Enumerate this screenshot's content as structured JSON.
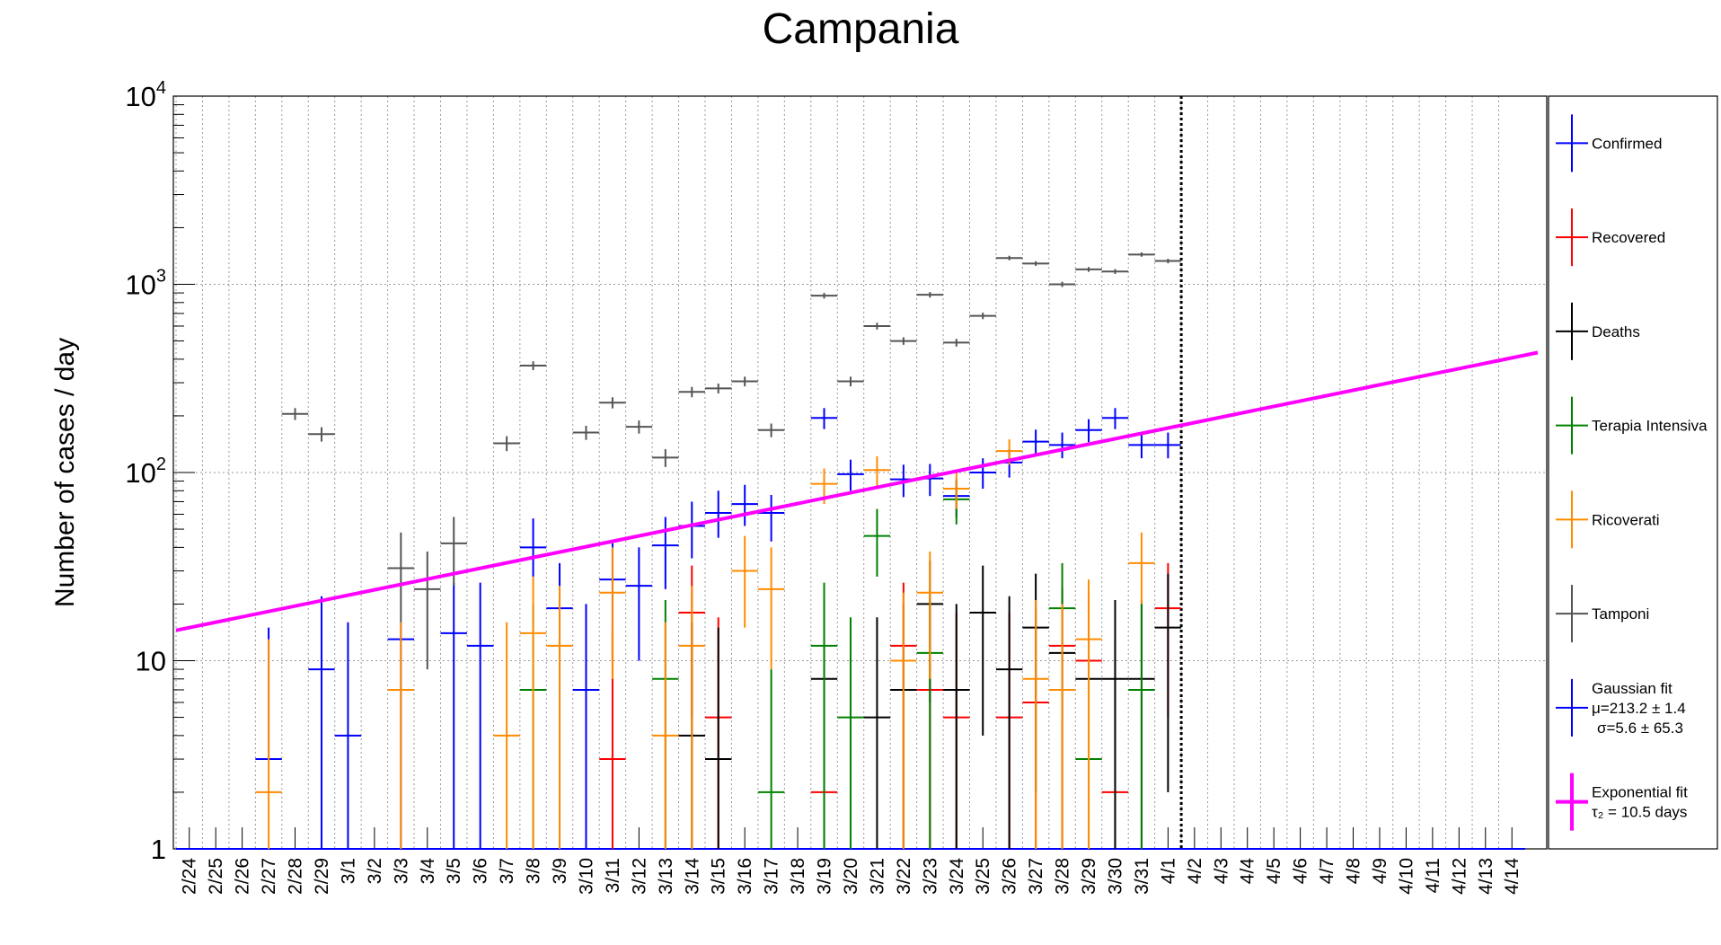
{
  "chart_data": {
    "type": "scatter",
    "title": "Campania",
    "ylabel": "Number of cases / day",
    "xlabel": "",
    "yscale": "log",
    "ylim": [
      1,
      10000
    ],
    "grid": true,
    "legend_position": "right",
    "y_ticks": [
      {
        "v": 1,
        "m": "1",
        "e": ""
      },
      {
        "v": 10,
        "m": "10",
        "e": ""
      },
      {
        "v": 100,
        "m": "10",
        "e": "2"
      },
      {
        "v": 1000,
        "m": "10",
        "e": "3"
      },
      {
        "v": 10000,
        "m": "10",
        "e": "4"
      }
    ],
    "categories": [
      "2/24",
      "2/25",
      "2/26",
      "2/27",
      "2/28",
      "2/29",
      "3/1",
      "3/2",
      "3/3",
      "3/4",
      "3/5",
      "3/6",
      "3/7",
      "3/8",
      "3/9",
      "3/10",
      "3/11",
      "3/12",
      "3/13",
      "3/14",
      "3/15",
      "3/16",
      "3/17",
      "3/18",
      "3/19",
      "3/20",
      "3/21",
      "3/22",
      "3/23",
      "3/24",
      "3/25",
      "3/26",
      "3/27",
      "3/28",
      "3/29",
      "3/30",
      "3/31",
      "4/1",
      "4/2",
      "4/3",
      "4/4",
      "4/5",
      "4/6",
      "4/7",
      "4/8",
      "4/9",
      "4/10",
      "4/11",
      "4/12",
      "4/13",
      "4/14"
    ],
    "last_data_date": "4/1",
    "series": [
      {
        "name": "Confirmed",
        "color": "#0000ff",
        "points": [
          {
            "x": "2/27",
            "y": 3,
            "yerr": [
              3,
              15
            ]
          },
          {
            "x": "2/29",
            "y": 9,
            "yerr": [
              1,
              22
            ]
          },
          {
            "x": "3/1",
            "y": 4,
            "yerr": [
              1,
              16
            ]
          },
          {
            "x": "3/3",
            "y": 13,
            "yerr": [
              1,
              16
            ]
          },
          {
            "x": "3/5",
            "y": 14,
            "yerr": [
              1,
              26
            ]
          },
          {
            "x": "3/6",
            "y": 12,
            "yerr": [
              1,
              26
            ]
          },
          {
            "x": "3/8",
            "y": 40,
            "yerr": [
              28,
              57
            ]
          },
          {
            "x": "3/9",
            "y": 19,
            "yerr": [
              1,
              33
            ]
          },
          {
            "x": "3/10",
            "y": 7,
            "yerr": [
              1,
              20
            ]
          },
          {
            "x": "3/11",
            "y": 27,
            "yerr": [
              10,
              42
            ]
          },
          {
            "x": "3/12",
            "y": 25,
            "yerr": [
              10,
              40
            ]
          },
          {
            "x": "3/13",
            "y": 41,
            "yerr": [
              24,
              58
            ]
          },
          {
            "x": "3/14",
            "y": 52,
            "yerr": [
              35,
              70
            ]
          },
          {
            "x": "3/15",
            "y": 61,
            "yerr": [
              45,
              80
            ]
          },
          {
            "x": "3/16",
            "y": 68,
            "yerr": [
              52,
              86
            ]
          },
          {
            "x": "3/17",
            "y": 61,
            "yerr": [
              43,
              76
            ]
          },
          {
            "x": "3/19",
            "y": 195,
            "yerr": [
              170,
              220
            ]
          },
          {
            "x": "3/20",
            "y": 98,
            "yerr": [
              80,
              117
            ]
          },
          {
            "x": "3/22",
            "y": 92,
            "yerr": [
              74,
              110
            ]
          },
          {
            "x": "3/23",
            "y": 93,
            "yerr": [
              75,
              111
            ]
          },
          {
            "x": "3/24",
            "y": 75,
            "yerr": [
              58,
              92
            ]
          },
          {
            "x": "3/25",
            "y": 100,
            "yerr": [
              82,
              119
            ]
          },
          {
            "x": "3/26",
            "y": 113,
            "yerr": [
              94,
              133
            ]
          },
          {
            "x": "3/27",
            "y": 146,
            "yerr": [
              124,
              169
            ]
          },
          {
            "x": "3/28",
            "y": 140,
            "yerr": [
              119,
              163
            ]
          },
          {
            "x": "3/29",
            "y": 168,
            "yerr": [
              145,
              192
            ]
          },
          {
            "x": "3/30",
            "y": 195,
            "yerr": [
              170,
              220
            ]
          },
          {
            "x": "3/31",
            "y": 140,
            "yerr": [
              119,
              163
            ]
          },
          {
            "x": "4/1",
            "y": 140,
            "yerr": [
              119,
              163
            ]
          }
        ]
      },
      {
        "name": "Recovered",
        "color": "#ff0000",
        "points": [
          {
            "x": "3/11",
            "y": 3,
            "yerr": [
              1,
              15
            ]
          },
          {
            "x": "3/14",
            "y": 18,
            "yerr": [
              5,
              32
            ]
          },
          {
            "x": "3/15",
            "y": 5,
            "yerr": [
              1,
              17
            ]
          },
          {
            "x": "3/19",
            "y": 2,
            "yerr": [
              1,
              12
            ]
          },
          {
            "x": "3/22",
            "y": 12,
            "yerr": [
              1,
              26
            ]
          },
          {
            "x": "3/23",
            "y": 7,
            "yerr": [
              1,
              20
            ]
          },
          {
            "x": "3/24",
            "y": 5,
            "yerr": [
              1,
              18
            ]
          },
          {
            "x": "3/26",
            "y": 5,
            "yerr": [
              1,
              18
            ]
          },
          {
            "x": "3/27",
            "y": 6,
            "yerr": [
              1,
              19
            ]
          },
          {
            "x": "3/28",
            "y": 12,
            "yerr": [
              1,
              25
            ]
          },
          {
            "x": "3/29",
            "y": 10,
            "yerr": [
              1,
              23
            ]
          },
          {
            "x": "3/30",
            "y": 2,
            "yerr": [
              1,
              13
            ]
          },
          {
            "x": "4/1",
            "y": 19,
            "yerr": [
              5,
              33
            ]
          }
        ]
      },
      {
        "name": "Deaths",
        "color": "#000000",
        "points": [
          {
            "x": "3/14",
            "y": 4,
            "yerr": [
              1,
              16
            ]
          },
          {
            "x": "3/15",
            "y": 3,
            "yerr": [
              1,
              15
            ]
          },
          {
            "x": "3/19",
            "y": 8,
            "yerr": [
              1,
              21
            ]
          },
          {
            "x": "3/21",
            "y": 5,
            "yerr": [
              1,
              17
            ]
          },
          {
            "x": "3/22",
            "y": 7,
            "yerr": [
              1,
              20
            ]
          },
          {
            "x": "3/23",
            "y": 20,
            "yerr": [
              6,
              34
            ]
          },
          {
            "x": "3/24",
            "y": 7,
            "yerr": [
              1,
              20
            ]
          },
          {
            "x": "3/25",
            "y": 18,
            "yerr": [
              4,
              32
            ]
          },
          {
            "x": "3/26",
            "y": 9,
            "yerr": [
              1,
              22
            ]
          },
          {
            "x": "3/27",
            "y": 15,
            "yerr": [
              2,
              29
            ]
          },
          {
            "x": "3/28",
            "y": 11,
            "yerr": [
              1,
              24
            ]
          },
          {
            "x": "3/29",
            "y": 8,
            "yerr": [
              1,
              21
            ]
          },
          {
            "x": "3/30",
            "y": 8,
            "yerr": [
              1,
              21
            ]
          },
          {
            "x": "3/31",
            "y": 8,
            "yerr": [
              1,
              21
            ]
          },
          {
            "x": "4/1",
            "y": 15,
            "yerr": [
              2,
              29
            ]
          }
        ]
      },
      {
        "name": "Terapia Intensiva",
        "color": "#008000",
        "points": [
          {
            "x": "3/8",
            "y": 7,
            "yerr": [
              1,
              20
            ]
          },
          {
            "x": "3/13",
            "y": 8,
            "yerr": [
              1,
              21
            ]
          },
          {
            "x": "3/17",
            "y": 2,
            "yerr": [
              1,
              9
            ]
          },
          {
            "x": "3/19",
            "y": 12,
            "yerr": [
              1,
              26
            ]
          },
          {
            "x": "3/20",
            "y": 5,
            "yerr": [
              1,
              17
            ]
          },
          {
            "x": "3/21",
            "y": 46,
            "yerr": [
              28,
              64
            ]
          },
          {
            "x": "3/23",
            "y": 11,
            "yerr": [
              1,
              24
            ]
          },
          {
            "x": "3/24",
            "y": 72,
            "yerr": [
              53,
              90
            ]
          },
          {
            "x": "3/28",
            "y": 19,
            "yerr": [
              5,
              33
            ]
          },
          {
            "x": "3/29",
            "y": 3,
            "yerr": [
              1,
              15
            ]
          },
          {
            "x": "3/31",
            "y": 7,
            "yerr": [
              1,
              20
            ]
          }
        ]
      },
      {
        "name": "Ricoverati",
        "color": "#ff8c00",
        "points": [
          {
            "x": "2/27",
            "y": 2,
            "yerr": [
              1,
              13
            ]
          },
          {
            "x": "3/3",
            "y": 7,
            "yerr": [
              1,
              16
            ]
          },
          {
            "x": "3/7",
            "y": 4,
            "yerr": [
              1,
              16
            ]
          },
          {
            "x": "3/8",
            "y": 14,
            "yerr": [
              1,
              28
            ]
          },
          {
            "x": "3/9",
            "y": 12,
            "yerr": [
              1,
              25
            ]
          },
          {
            "x": "3/11",
            "y": 23,
            "yerr": [
              8,
              40
            ]
          },
          {
            "x": "3/13",
            "y": 4,
            "yerr": [
              1,
              16
            ]
          },
          {
            "x": "3/14",
            "y": 12,
            "yerr": [
              1,
              25
            ]
          },
          {
            "x": "3/16",
            "y": 30,
            "yerr": [
              15,
              46
            ]
          },
          {
            "x": "3/17",
            "y": 24,
            "yerr": [
              9,
              40
            ]
          },
          {
            "x": "3/19",
            "y": 87,
            "yerr": [
              68,
              105
            ]
          },
          {
            "x": "3/21",
            "y": 103,
            "yerr": [
              84,
              122
            ]
          },
          {
            "x": "3/22",
            "y": 10,
            "yerr": [
              1,
              23
            ]
          },
          {
            "x": "3/23",
            "y": 23,
            "yerr": [
              8,
              38
            ]
          },
          {
            "x": "3/24",
            "y": 82,
            "yerr": [
              64,
              100
            ]
          },
          {
            "x": "3/26",
            "y": 130,
            "yerr": [
              110,
              150
            ]
          },
          {
            "x": "3/27",
            "y": 8,
            "yerr": [
              1,
              21
            ]
          },
          {
            "x": "3/28",
            "y": 7,
            "yerr": [
              1,
              20
            ]
          },
          {
            "x": "3/29",
            "y": 13,
            "yerr": [
              1,
              27
            ]
          },
          {
            "x": "3/31",
            "y": 33,
            "yerr": [
              20,
              48
            ]
          }
        ]
      },
      {
        "name": "Tamponi",
        "color": "#555555",
        "points": [
          {
            "x": "2/28",
            "y": 205,
            "yerr": [
              190,
              220
            ]
          },
          {
            "x": "2/29",
            "y": 160,
            "yerr": [
              146,
              174
            ]
          },
          {
            "x": "3/3",
            "y": 31,
            "yerr": [
              16,
              48
            ]
          },
          {
            "x": "3/4",
            "y": 24,
            "yerr": [
              9,
              38
            ]
          },
          {
            "x": "3/5",
            "y": 42,
            "yerr": [
              25,
              58
            ]
          },
          {
            "x": "3/7",
            "y": 143,
            "yerr": [
              130,
              156
            ]
          },
          {
            "x": "3/8",
            "y": 370,
            "yerr": [
              350,
              390
            ]
          },
          {
            "x": "3/10",
            "y": 163,
            "yerr": [
              149,
              177
            ]
          },
          {
            "x": "3/11",
            "y": 235,
            "yerr": [
              219,
              251
            ]
          },
          {
            "x": "3/12",
            "y": 175,
            "yerr": [
              161,
              189
            ]
          },
          {
            "x": "3/13",
            "y": 120,
            "yerr": [
              107,
              133
            ]
          },
          {
            "x": "3/14",
            "y": 268,
            "yerr": [
              251,
              285
            ]
          },
          {
            "x": "3/15",
            "y": 280,
            "yerr": [
              263,
              297
            ]
          },
          {
            "x": "3/16",
            "y": 305,
            "yerr": [
              287,
              323
            ]
          },
          {
            "x": "3/17",
            "y": 168,
            "yerr": [
              154,
              182
            ]
          },
          {
            "x": "3/19",
            "y": 870,
            "yerr": [
              840,
              900
            ]
          },
          {
            "x": "3/20",
            "y": 305,
            "yerr": [
              287,
              323
            ]
          },
          {
            "x": "3/21",
            "y": 600,
            "yerr": [
              575,
              625
            ]
          },
          {
            "x": "3/22",
            "y": 500,
            "yerr": [
              477,
              523
            ]
          },
          {
            "x": "3/23",
            "y": 880,
            "yerr": [
              850,
              910
            ]
          },
          {
            "x": "3/24",
            "y": 490,
            "yerr": [
              467,
              513
            ]
          },
          {
            "x": "3/25",
            "y": 680,
            "yerr": [
              653,
              707
            ]
          },
          {
            "x": "3/26",
            "y": 1380,
            "yerr": [
              1342,
              1418
            ]
          },
          {
            "x": "3/27",
            "y": 1290,
            "yerr": [
              1254,
              1326
            ]
          },
          {
            "x": "3/28",
            "y": 1000,
            "yerr": [
              968,
              1032
            ]
          },
          {
            "x": "3/29",
            "y": 1200,
            "yerr": [
              1165,
              1235
            ]
          },
          {
            "x": "3/30",
            "y": 1170,
            "yerr": [
              1135,
              1205
            ]
          },
          {
            "x": "3/31",
            "y": 1440,
            "yerr": [
              1402,
              1478
            ]
          },
          {
            "x": "4/1",
            "y": 1330,
            "yerr": [
              1293,
              1367
            ]
          }
        ]
      }
    ],
    "exponential_fit": {
      "color": "#ff00ff",
      "x_start": "2/24",
      "y_start": 14.5,
      "doubling_days": 10.5
    },
    "legend": [
      {
        "label": "Confirmed",
        "color": "#0000ff",
        "extra": []
      },
      {
        "label": "Recovered",
        "color": "#ff0000",
        "extra": []
      },
      {
        "label": "Deaths",
        "color": "#000000",
        "extra": []
      },
      {
        "label": "Terapia Intensiva",
        "color": "#008000",
        "extra": []
      },
      {
        "label": "Ricoverati",
        "color": "#ff8c00",
        "extra": []
      },
      {
        "label": "Tamponi",
        "color": "#555555",
        "extra": []
      },
      {
        "label": "Gaussian fit",
        "color": "#0000ff",
        "extra": [
          "μ=213.2 ± 1.4",
          "σ=5.6 ± 65.3"
        ]
      },
      {
        "label": "Exponential fit",
        "color": "#ff00ff",
        "extra": [
          "τ₂ = 10.5 days"
        ]
      }
    ]
  }
}
